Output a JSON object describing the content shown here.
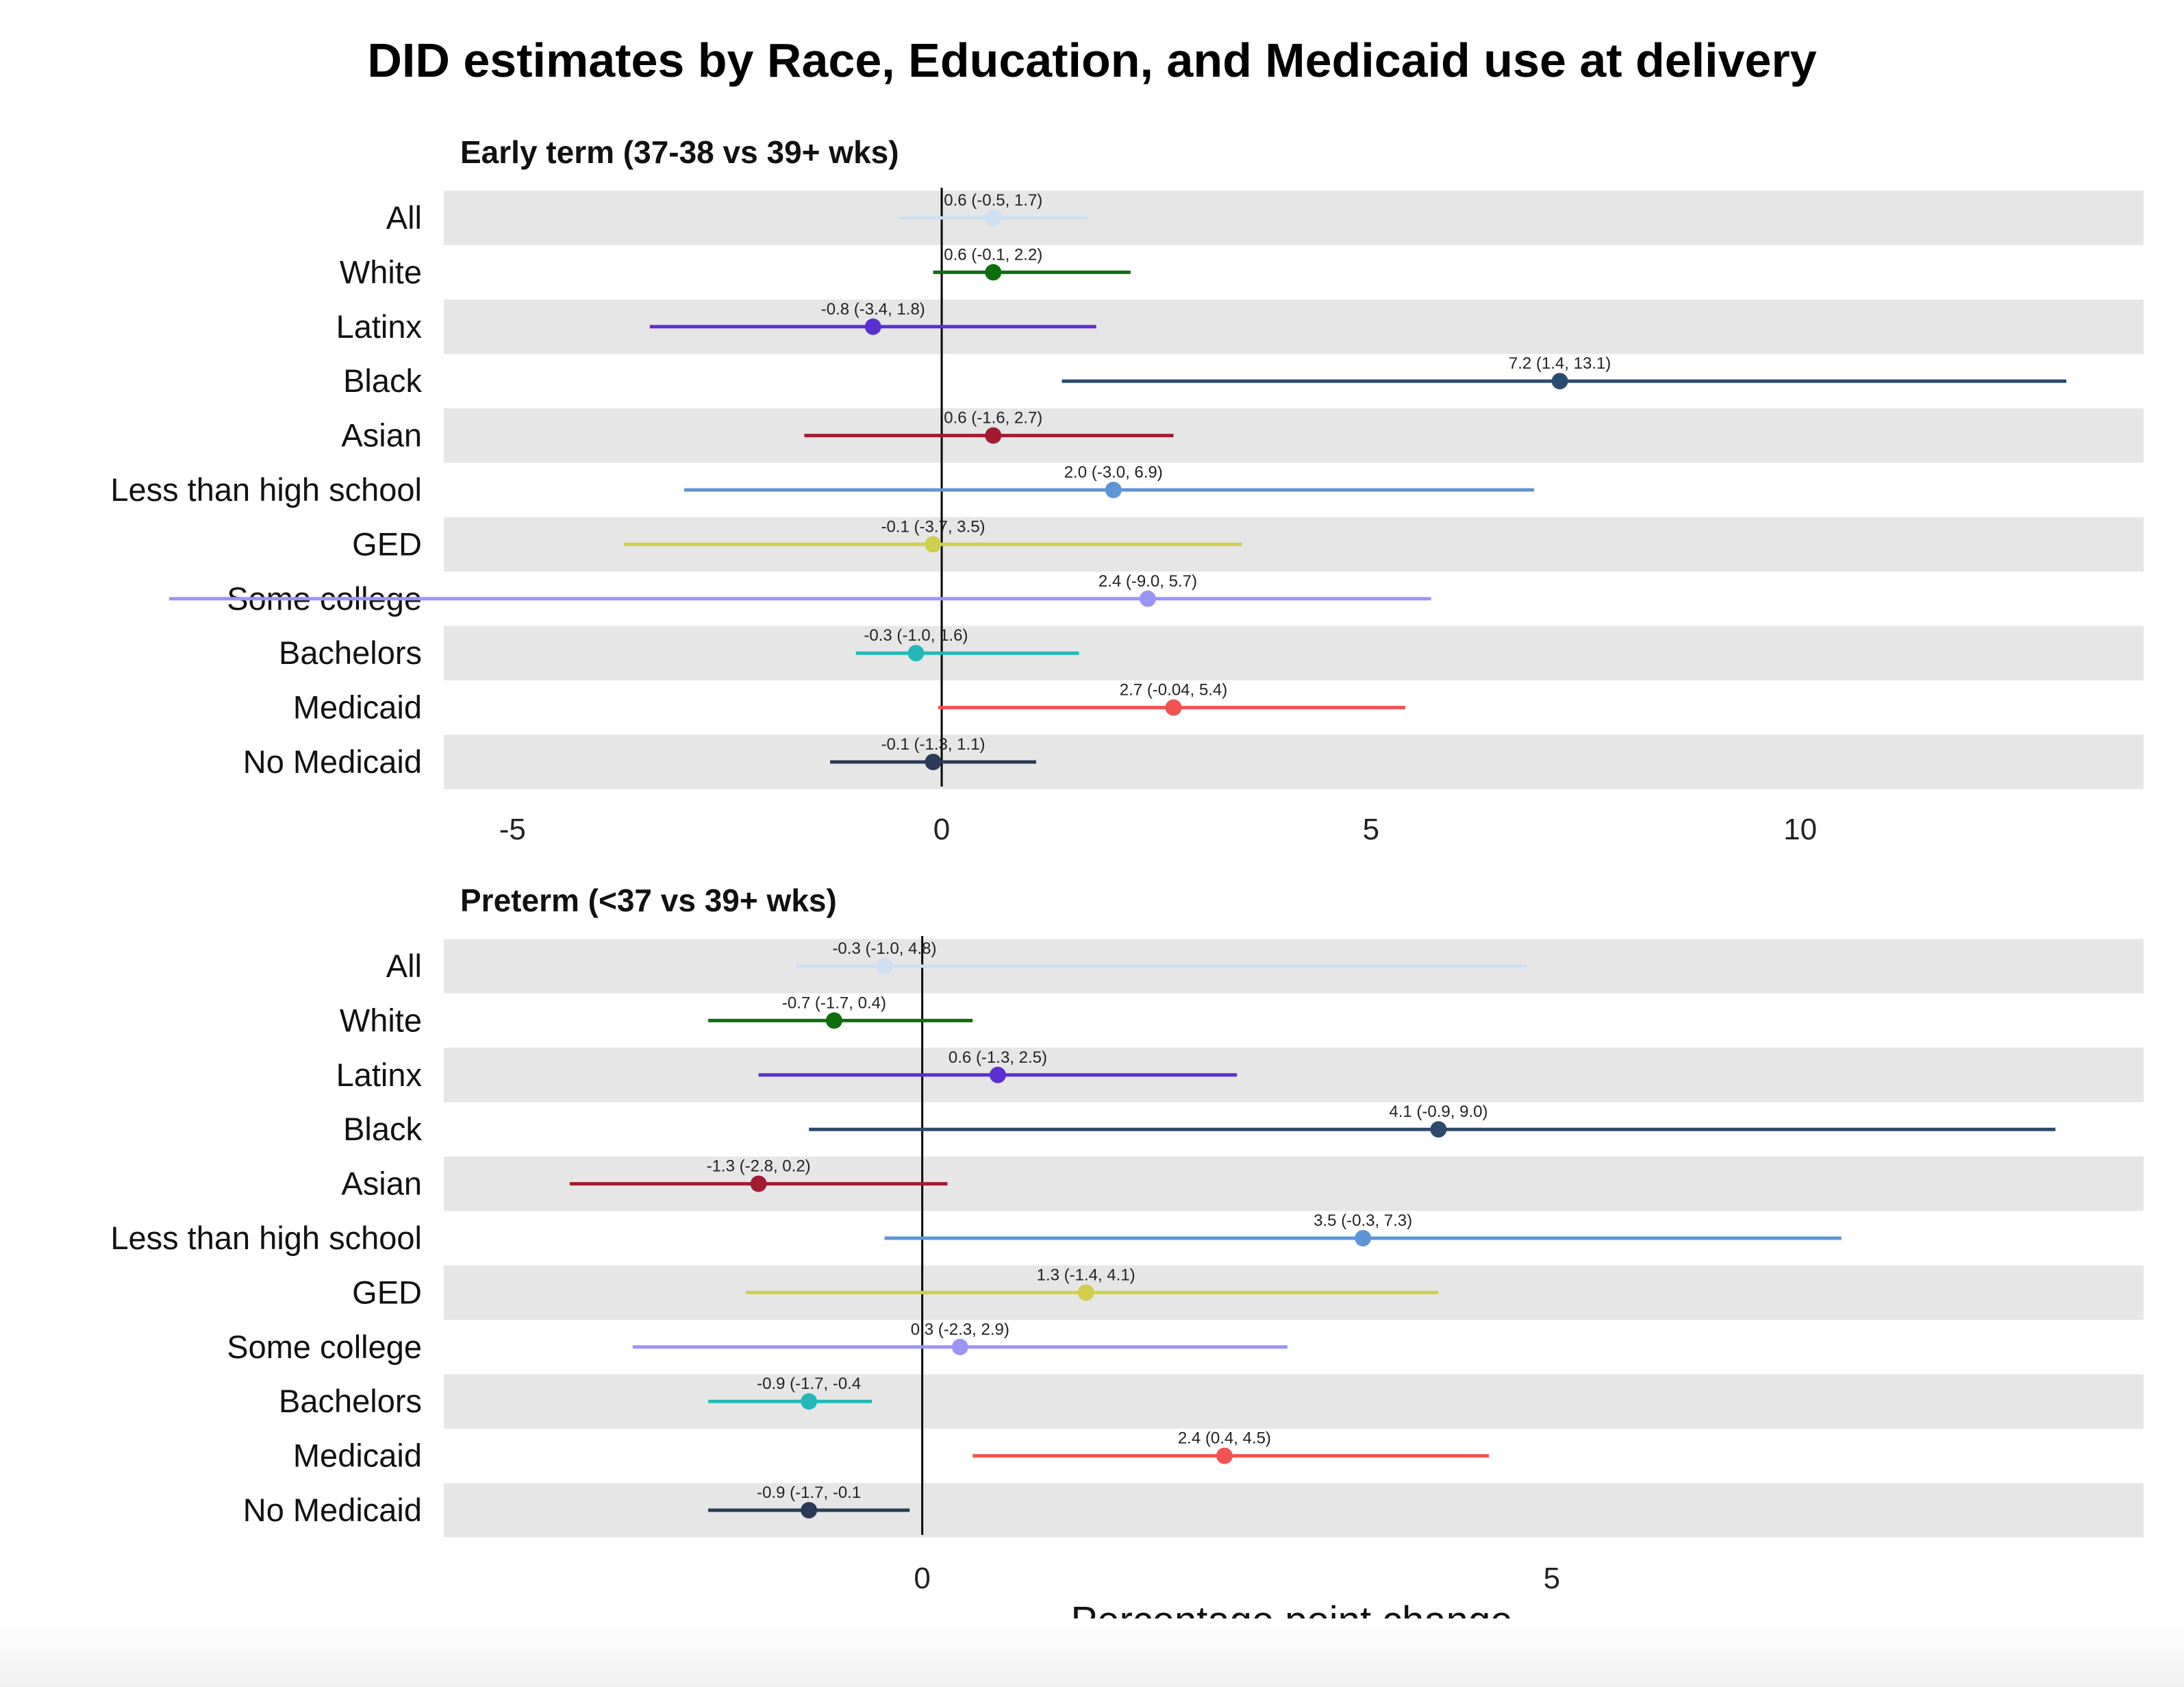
{
  "title": "DID estimates by Race, Education, and Medicaid use at delivery",
  "chart_data": [
    {
      "type": "forest",
      "title": "Early term (37-38 vs 39+ wks)",
      "xlabel": "",
      "xlim": [
        -5.8,
        14.0
      ],
      "xticks": [
        -5,
        0,
        5,
        10
      ],
      "rows": [
        {
          "label": "All",
          "est": 0.6,
          "lo": -0.5,
          "hi": 1.7,
          "text": "0.6 (-0.5, 1.7)",
          "color": "#cfe0f2"
        },
        {
          "label": "White",
          "est": 0.6,
          "lo": -0.1,
          "hi": 2.2,
          "text": "0.6 (-0.1, 2.2)",
          "color": "#0d6e0d"
        },
        {
          "label": "Latinx",
          "est": -0.8,
          "lo": -3.4,
          "hi": 1.8,
          "text": "-0.8 (-3.4, 1.8)",
          "color": "#5b2fd1"
        },
        {
          "label": "Black",
          "est": 7.2,
          "lo": 1.4,
          "hi": 13.1,
          "text": "7.2 (1.4, 13.1)",
          "color": "#2c4a6e"
        },
        {
          "label": "Asian",
          "est": 0.6,
          "lo": -1.6,
          "hi": 2.7,
          "text": "0.6 (-1.6, 2.7)",
          "color": "#a21b31"
        },
        {
          "label": "Less than high school",
          "est": 2.0,
          "lo": -3.0,
          "hi": 6.9,
          "text": "2.0 (-3.0, 6.9)",
          "color": "#5e95d6"
        },
        {
          "label": "GED",
          "est": -0.1,
          "lo": -3.7,
          "hi": 3.5,
          "text": "-0.1 (-3.7, 3.5)",
          "color": "#cfcf4b"
        },
        {
          "label": "Some college",
          "est": 2.4,
          "lo": -9.0,
          "hi": 5.7,
          "text": "2.4 (-9.0, 5.7)",
          "color": "#9a95f5"
        },
        {
          "label": "Bachelors",
          "est": -0.3,
          "lo": -1.0,
          "hi": 1.6,
          "text": "-0.3 (-1.0, 1.6)",
          "color": "#22b8b8"
        },
        {
          "label": "Medicaid",
          "est": 2.7,
          "lo": -0.04,
          "hi": 5.4,
          "text": "2.7 (-0.04, 5.4)",
          "color": "#f25252"
        },
        {
          "label": "No Medicaid",
          "est": -0.1,
          "lo": -1.3,
          "hi": 1.1,
          "text": "-0.1 (-1.3, 1.1)",
          "color": "#2b3a55"
        }
      ]
    },
    {
      "type": "forest",
      "title": "Preterm (<37 vs 39+ wks)",
      "xlabel": "Percentage point change",
      "xlim": [
        -3.8,
        9.7
      ],
      "xticks": [
        0,
        5
      ],
      "rows": [
        {
          "label": "All",
          "est": -0.3,
          "lo": -1.0,
          "hi": 4.8,
          "text": "-0.3 (-1.0, 4.8)",
          "color": "#cfe0f2"
        },
        {
          "label": "White",
          "est": -0.7,
          "lo": -1.7,
          "hi": 0.4,
          "text": "-0.7 (-1.7, 0.4)",
          "color": "#0d6e0d"
        },
        {
          "label": "Latinx",
          "est": 0.6,
          "lo": -1.3,
          "hi": 2.5,
          "text": "0.6 (-1.3, 2.5)",
          "color": "#5b2fd1"
        },
        {
          "label": "Black",
          "est": 4.1,
          "lo": -0.9,
          "hi": 9.0,
          "text": "4.1 (-0.9, 9.0)",
          "color": "#2c4a6e"
        },
        {
          "label": "Asian",
          "est": -1.3,
          "lo": -2.8,
          "hi": 0.2,
          "text": "-1.3 (-2.8, 0.2)",
          "color": "#a21b31"
        },
        {
          "label": "Less than high school",
          "est": 3.5,
          "lo": -0.3,
          "hi": 7.3,
          "text": "3.5 (-0.3, 7.3)",
          "color": "#5e95d6"
        },
        {
          "label": "GED",
          "est": 1.3,
          "lo": -1.4,
          "hi": 4.1,
          "text": "1.3 (-1.4, 4.1)",
          "color": "#cfcf4b"
        },
        {
          "label": "Some college",
          "est": 0.3,
          "lo": -2.3,
          "hi": 2.9,
          "text": "0.3 (-2.3, 2.9)",
          "color": "#9a95f5"
        },
        {
          "label": "Bachelors",
          "est": -0.9,
          "lo": -1.7,
          "hi": -0.4,
          "text": "-0.9 (-1.7, -0.4",
          "color": "#22b8b8"
        },
        {
          "label": "Medicaid",
          "est": 2.4,
          "lo": 0.4,
          "hi": 4.5,
          "text": "2.4 (0.4, 4.5)",
          "color": "#f25252"
        },
        {
          "label": "No Medicaid",
          "est": -0.9,
          "lo": -1.7,
          "hi": -0.1,
          "text": "-0.9 (-1.7, -0.1",
          "color": "#2b3a55"
        }
      ]
    }
  ]
}
